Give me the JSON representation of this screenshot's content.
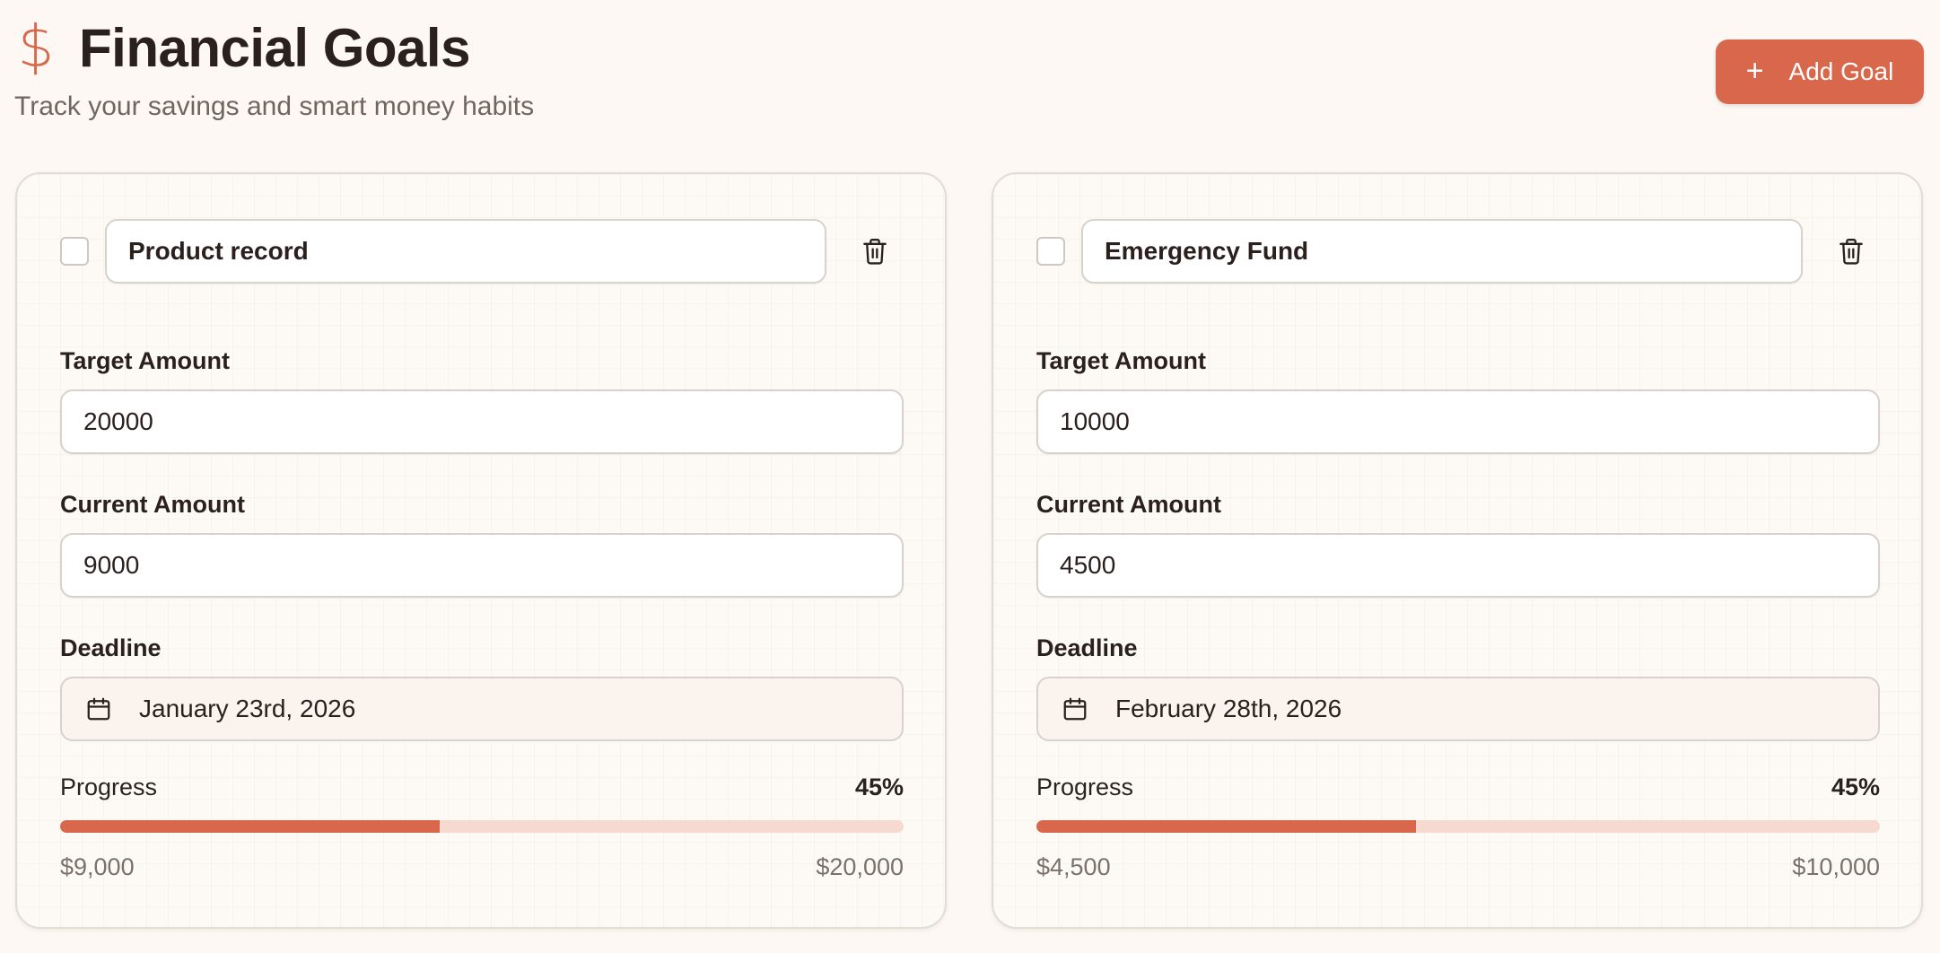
{
  "header": {
    "icon": "dollar-icon",
    "icon_glyph": "$",
    "title": "Financial Goals",
    "subtitle": "Track your savings and smart money habits",
    "add_button_label": "Add Goal"
  },
  "accent_color": "#d9674b",
  "field_labels": {
    "target": "Target Amount",
    "current": "Current Amount",
    "deadline": "Deadline",
    "progress": "Progress"
  },
  "goals": [
    {
      "name": "Product record",
      "target_amount": "20000",
      "current_amount": "9000",
      "deadline": "January 23rd, 2026",
      "progress_percent": "45%",
      "progress_value": 45,
      "current_display": "$9,000",
      "target_display": "$20,000"
    },
    {
      "name": "Emergency Fund",
      "target_amount": "10000",
      "current_amount": "4500",
      "deadline": "February 28th, 2026",
      "progress_percent": "45%",
      "progress_value": 45,
      "current_display": "$4,500",
      "target_display": "$10,000"
    }
  ]
}
